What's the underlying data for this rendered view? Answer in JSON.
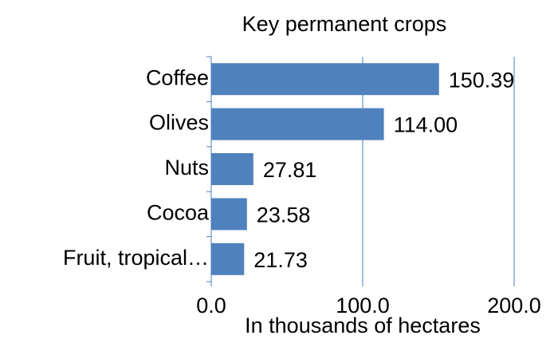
{
  "chart_data": {
    "type": "bar",
    "orientation": "horizontal",
    "title": "Key permanent crops",
    "xlabel": "In thousands of hectares",
    "categories": [
      "Coffee",
      "Olives",
      "Nuts",
      "Cocoa",
      "Fruit, tropical…"
    ],
    "values": [
      150.39,
      114.0,
      27.81,
      23.58,
      21.73
    ],
    "value_labels": [
      "150.39",
      "114.00",
      "27.81",
      "23.58",
      "21.73"
    ],
    "color": "#4f81bd",
    "xlim": [
      0,
      200
    ],
    "xticks": [
      {
        "value": 0,
        "label": "0.0"
      },
      {
        "value": 100,
        "label": "100.0"
      },
      {
        "value": 200,
        "label": "200.0"
      }
    ],
    "grid": true
  }
}
